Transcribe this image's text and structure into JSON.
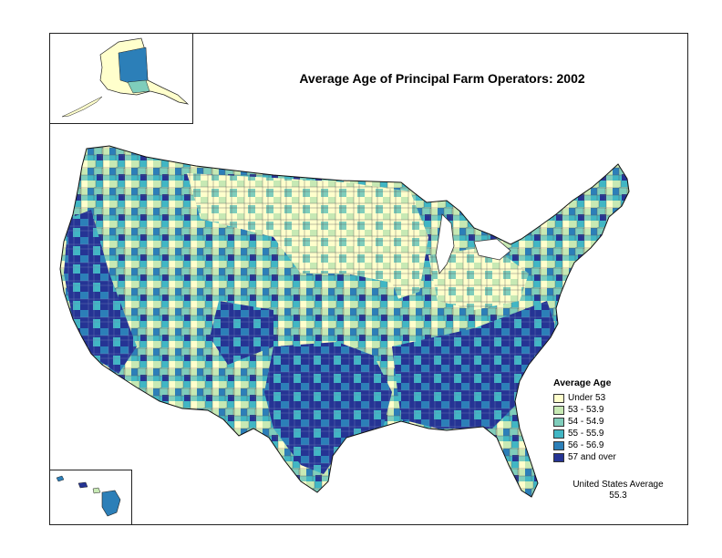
{
  "title": "Average Age of Principal Farm Operators:  2002",
  "legend": {
    "title": "Average Age",
    "items": [
      {
        "label": "Under 53",
        "color": "#ffffcc"
      },
      {
        "label": "53 - 53.9",
        "color": "#c7e9b4"
      },
      {
        "label": "54 - 54.9",
        "color": "#7fcdbb"
      },
      {
        "label": "55 - 55.9",
        "color": "#41b6c4"
      },
      {
        "label": "56 - 56.9",
        "color": "#2c7fb8"
      },
      {
        "label": "57 and over",
        "color": "#253494"
      }
    ]
  },
  "us_average": {
    "label": "United States Average",
    "value": "55.3"
  }
}
